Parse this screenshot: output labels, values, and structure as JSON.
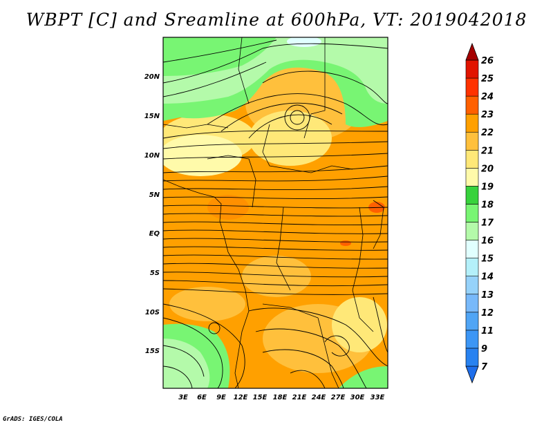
{
  "title": "WBPT [C] and Sreamline at 600hPa, VT: 2019042018",
  "credit": "GrADS: IGES/COLA",
  "map": {
    "lat_labels": [
      "20N",
      "15N",
      "10N",
      "5N",
      "EQ",
      "5S",
      "10S",
      "15S"
    ],
    "lon_labels": [
      "3E",
      "6E",
      "9E",
      "12E",
      "15E",
      "18E",
      "21E",
      "24E",
      "27E",
      "30E",
      "33E"
    ]
  },
  "colorbar": {
    "levels": [
      "7",
      "9",
      "11",
      "12",
      "13",
      "14",
      "15",
      "16",
      "17",
      "18",
      "19",
      "20",
      "21",
      "22",
      "23",
      "24",
      "25",
      "26"
    ],
    "colors": [
      "#1e6eeb",
      "#2882f0",
      "#3c96f5",
      "#50a5f5",
      "#78b9fa",
      "#96d2fa",
      "#b4f0fa",
      "#e1ffff",
      "#b4faaa",
      "#78f573",
      "#37d23c",
      "#fffaaa",
      "#ffe878",
      "#ffc03c",
      "#ffa000",
      "#ff6000",
      "#ff3200",
      "#e11400",
      "#a50000"
    ]
  }
}
